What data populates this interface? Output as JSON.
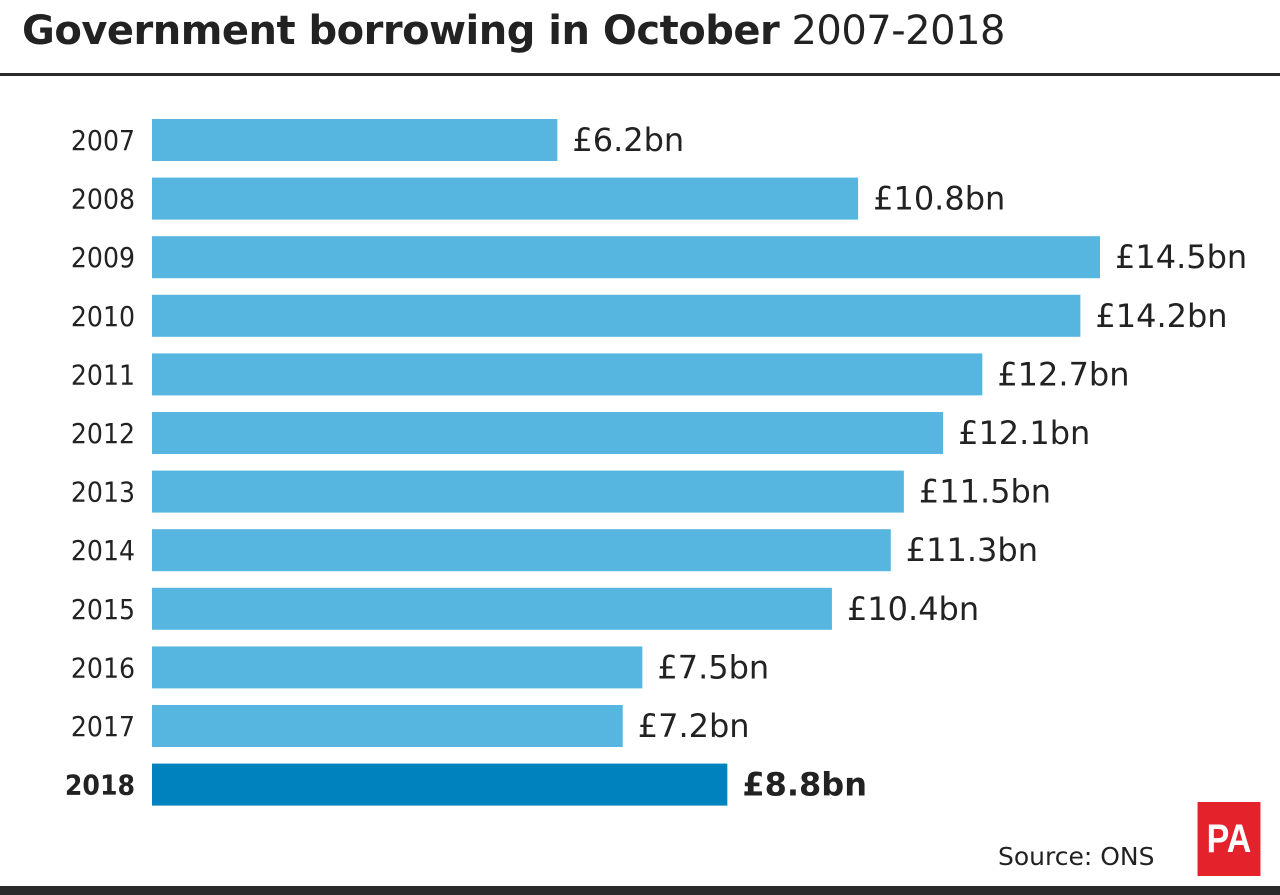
{
  "chart_data": {
    "type": "bar",
    "orientation": "horizontal",
    "title": "Government borrowing in October",
    "subtitle": "2007-2018",
    "categories": [
      "2007",
      "2008",
      "2009",
      "2010",
      "2011",
      "2012",
      "2013",
      "2014",
      "2015",
      "2016",
      "2017",
      "2018"
    ],
    "values": [
      6.2,
      10.8,
      14.5,
      14.2,
      12.7,
      12.1,
      11.5,
      11.3,
      10.4,
      7.5,
      7.2,
      8.8
    ],
    "data_labels": [
      "£6.2bn",
      "£10.8bn",
      "£14.5bn",
      "£14.2bn",
      "£12.7bn",
      "£12.1bn",
      "£11.5bn",
      "£11.3bn",
      "£10.4bn",
      "£7.5bn",
      "£7.2bn",
      "£8.8bn"
    ],
    "highlight": "2018",
    "unit": "£bn",
    "xlabel": "",
    "ylabel": "",
    "grid": false,
    "colors": {
      "bar": "#56b6df",
      "highlight": "#0082be",
      "text": "#222222"
    }
  },
  "source": "Source: ONS",
  "logo": "PA"
}
